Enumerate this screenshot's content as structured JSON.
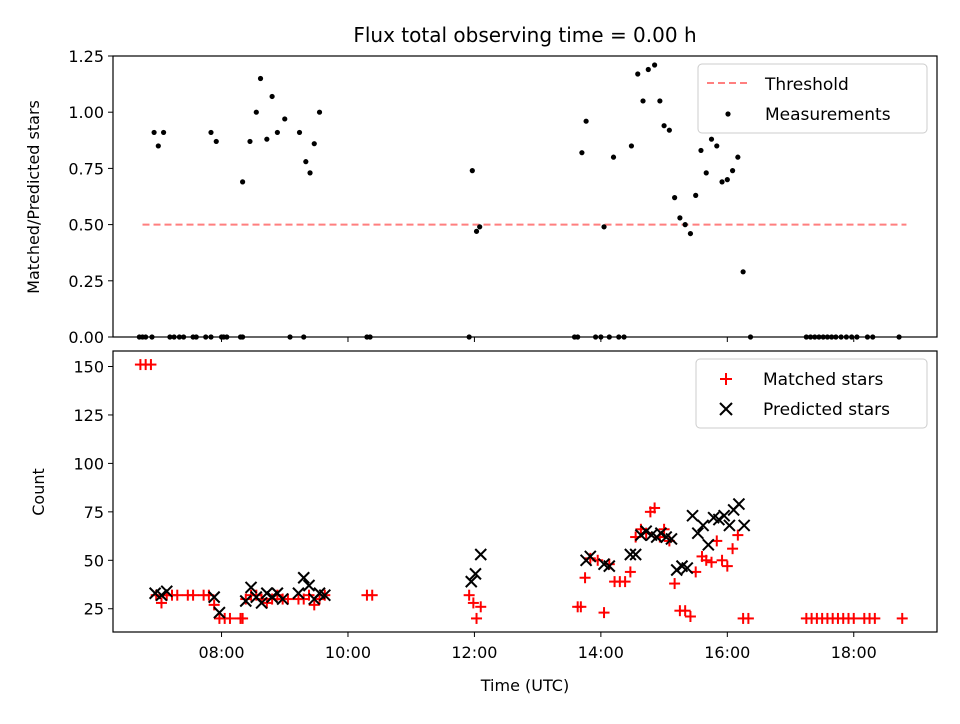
{
  "figure": {
    "title": "Flux total observing time = 0.00 h",
    "xlabel": "Time (UTC)"
  },
  "chart_data": [
    {
      "type": "scatter",
      "title": "Flux total observing time = 0.00 h",
      "ylabel": "Matched/Predicted stars",
      "xlim": [
        "06:17",
        "19:19"
      ],
      "ylim": [
        0,
        1.25
      ],
      "x_ticks": [
        "08:00",
        "10:00",
        "12:00",
        "14:00",
        "16:00",
        "18:00"
      ],
      "y_ticks": [
        "0.00",
        "0.25",
        "0.50",
        "0.75",
        "1.00",
        "1.25"
      ],
      "legend": {
        "placement": "top-right",
        "entries": [
          "Threshold",
          "Measurements"
        ]
      },
      "threshold": {
        "name": "Threshold",
        "value": 0.5,
        "x_range": [
          "06:45",
          "18:50"
        ],
        "color": "#ff7f7f",
        "style": "dashed"
      },
      "series": [
        {
          "name": "Measurements",
          "color": "#000000",
          "marker": "dot",
          "points": [
            [
              "06:42",
              0
            ],
            [
              "06:45",
              0
            ],
            [
              "06:48",
              0
            ],
            [
              "06:54",
              0
            ],
            [
              "06:56",
              0.91
            ],
            [
              "07:00",
              0.85
            ],
            [
              "07:05",
              0.91
            ],
            [
              "07:11",
              0
            ],
            [
              "07:15",
              0
            ],
            [
              "07:20",
              0
            ],
            [
              "07:24",
              0
            ],
            [
              "07:33",
              0
            ],
            [
              "07:36",
              0
            ],
            [
              "07:45",
              0
            ],
            [
              "07:50",
              0
            ],
            [
              "07:50",
              0.91
            ],
            [
              "07:55",
              0.87
            ],
            [
              "08:00",
              0
            ],
            [
              "08:02",
              0
            ],
            [
              "08:05",
              0
            ],
            [
              "08:18",
              0
            ],
            [
              "08:20",
              0
            ],
            [
              "08:20",
              0.69
            ],
            [
              "08:27",
              0.87
            ],
            [
              "08:33",
              1.0
            ],
            [
              "08:37",
              1.15
            ],
            [
              "08:43",
              0.88
            ],
            [
              "08:48",
              1.07
            ],
            [
              "08:53",
              0.91
            ],
            [
              "09:00",
              0.97
            ],
            [
              "09:05",
              0
            ],
            [
              "09:18",
              0
            ],
            [
              "09:14",
              0.91
            ],
            [
              "09:20",
              0.78
            ],
            [
              "09:24",
              0.73
            ],
            [
              "09:28",
              0.86
            ],
            [
              "09:33",
              1.0
            ],
            [
              "10:18",
              0
            ],
            [
              "10:21",
              0
            ],
            [
              "11:55",
              0
            ],
            [
              "11:58",
              0.74
            ],
            [
              "12:02",
              0.47
            ],
            [
              "12:05",
              0.49
            ],
            [
              "13:35",
              0
            ],
            [
              "13:38",
              0
            ],
            [
              "13:42",
              0.82
            ],
            [
              "13:46",
              0.96
            ],
            [
              "13:55",
              0
            ],
            [
              "14:00",
              0
            ],
            [
              "14:03",
              0.49
            ],
            [
              "14:08",
              0
            ],
            [
              "14:12",
              0.8
            ],
            [
              "14:17",
              0
            ],
            [
              "14:22",
              0
            ],
            [
              "14:29",
              0.85
            ],
            [
              "14:35",
              1.17
            ],
            [
              "14:40",
              1.05
            ],
            [
              "14:45",
              1.19
            ],
            [
              "14:51",
              1.21
            ],
            [
              "14:56",
              1.05
            ],
            [
              "15:00",
              0.94
            ],
            [
              "15:05",
              0.92
            ],
            [
              "15:10",
              0.62
            ],
            [
              "15:15",
              0.53
            ],
            [
              "15:20",
              0.5
            ],
            [
              "15:25",
              0.46
            ],
            [
              "15:30",
              0.63
            ],
            [
              "15:35",
              0.83
            ],
            [
              "15:40",
              0.73
            ],
            [
              "15:45",
              0.88
            ],
            [
              "15:50",
              0.85
            ],
            [
              "15:55",
              0.69
            ],
            [
              "16:00",
              0.7
            ],
            [
              "16:05",
              0.74
            ],
            [
              "16:10",
              0.8
            ],
            [
              "16:15",
              0.29
            ],
            [
              "16:22",
              0
            ],
            [
              "17:15",
              0
            ],
            [
              "17:19",
              0
            ],
            [
              "17:23",
              0
            ],
            [
              "17:27",
              0
            ],
            [
              "17:31",
              0
            ],
            [
              "17:35",
              0
            ],
            [
              "17:39",
              0
            ],
            [
              "17:43",
              0
            ],
            [
              "17:48",
              0
            ],
            [
              "17:53",
              0
            ],
            [
              "17:58",
              0
            ],
            [
              "18:03",
              0
            ],
            [
              "18:13",
              0
            ],
            [
              "18:18",
              0
            ],
            [
              "18:43",
              0
            ]
          ]
        }
      ]
    },
    {
      "type": "scatter",
      "ylabel": "Count",
      "xlabel": "Time (UTC)",
      "xlim": [
        "06:17",
        "19:19"
      ],
      "ylim": [
        13,
        158
      ],
      "x_ticks": [
        "08:00",
        "10:00",
        "12:00",
        "14:00",
        "16:00",
        "18:00"
      ],
      "y_ticks": [
        "25",
        "50",
        "75",
        "100",
        "125",
        "150"
      ],
      "legend": {
        "placement": "top-right",
        "entries": [
          "Matched stars",
          "Predicted stars"
        ]
      },
      "series": [
        {
          "name": "Matched stars",
          "color": "#ff0000",
          "marker": "plus",
          "points": [
            [
              "06:43",
              151
            ],
            [
              "06:48",
              151
            ],
            [
              "06:53",
              151
            ],
            [
              "06:58",
              32
            ],
            [
              "07:03",
              28
            ],
            [
              "07:08",
              32
            ],
            [
              "07:13",
              32
            ],
            [
              "07:18",
              32
            ],
            [
              "07:28",
              32
            ],
            [
              "07:33",
              32
            ],
            [
              "07:43",
              32
            ],
            [
              "07:48",
              32
            ],
            [
              "07:53",
              27
            ],
            [
              "07:58",
              20
            ],
            [
              "08:03",
              20
            ],
            [
              "08:08",
              20
            ],
            [
              "08:18",
              20
            ],
            [
              "08:20",
              20
            ],
            [
              "08:23",
              30
            ],
            [
              "08:28",
              32
            ],
            [
              "08:33",
              32
            ],
            [
              "08:38",
              30
            ],
            [
              "08:43",
              28
            ],
            [
              "08:48",
              30
            ],
            [
              "08:53",
              32
            ],
            [
              "08:58",
              30
            ],
            [
              "09:03",
              30
            ],
            [
              "09:13",
              30
            ],
            [
              "09:18",
              30
            ],
            [
              "09:23",
              32
            ],
            [
              "09:28",
              27
            ],
            [
              "09:33",
              30
            ],
            [
              "09:38",
              32
            ],
            [
              "10:18",
              32
            ],
            [
              "10:23",
              32
            ],
            [
              "11:55",
              32
            ],
            [
              "11:59",
              28
            ],
            [
              "12:02",
              20
            ],
            [
              "12:06",
              26
            ],
            [
              "13:38",
              26
            ],
            [
              "13:41",
              26
            ],
            [
              "13:45",
              41
            ],
            [
              "13:50",
              51
            ],
            [
              "13:57",
              50
            ],
            [
              "14:03",
              23
            ],
            [
              "14:08",
              48
            ],
            [
              "14:13",
              39
            ],
            [
              "14:18",
              39
            ],
            [
              "14:23",
              39
            ],
            [
              "14:28",
              44
            ],
            [
              "14:33",
              62
            ],
            [
              "14:38",
              66
            ],
            [
              "14:43",
              64
            ],
            [
              "14:47",
              75
            ],
            [
              "14:51",
              77
            ],
            [
              "14:56",
              62
            ],
            [
              "15:00",
              66
            ],
            [
              "15:05",
              60
            ],
            [
              "15:10",
              38
            ],
            [
              "15:15",
              24
            ],
            [
              "15:20",
              24
            ],
            [
              "15:25",
              21
            ],
            [
              "15:30",
              44
            ],
            [
              "15:36",
              52
            ],
            [
              "15:40",
              50
            ],
            [
              "15:45",
              49
            ],
            [
              "15:50",
              60
            ],
            [
              "15:55",
              50
            ],
            [
              "16:00",
              47
            ],
            [
              "16:05",
              56
            ],
            [
              "16:10",
              63
            ],
            [
              "16:15",
              20
            ],
            [
              "16:20",
              20
            ],
            [
              "17:15",
              20
            ],
            [
              "17:20",
              20
            ],
            [
              "17:25",
              20
            ],
            [
              "17:30",
              20
            ],
            [
              "17:35",
              20
            ],
            [
              "17:40",
              20
            ],
            [
              "17:45",
              20
            ],
            [
              "17:50",
              20
            ],
            [
              "17:55",
              20
            ],
            [
              "18:00",
              20
            ],
            [
              "18:10",
              20
            ],
            [
              "18:15",
              20
            ],
            [
              "18:20",
              20
            ],
            [
              "18:46",
              20
            ]
          ]
        },
        {
          "name": "Predicted stars",
          "color": "#000000",
          "marker": "x",
          "points": [
            [
              "06:57",
              33
            ],
            [
              "07:03",
              32
            ],
            [
              "07:08",
              34
            ],
            [
              "07:53",
              31
            ],
            [
              "07:58",
              23
            ],
            [
              "08:23",
              29
            ],
            [
              "08:28",
              36
            ],
            [
              "08:33",
              31
            ],
            [
              "08:38",
              28
            ],
            [
              "08:43",
              33
            ],
            [
              "08:48",
              31
            ],
            [
              "08:53",
              33
            ],
            [
              "08:58",
              30
            ],
            [
              "09:13",
              33
            ],
            [
              "09:18",
              41
            ],
            [
              "09:23",
              37
            ],
            [
              "09:28",
              30
            ],
            [
              "09:33",
              33
            ],
            [
              "09:38",
              32
            ],
            [
              "11:57",
              39
            ],
            [
              "12:01",
              43
            ],
            [
              "12:06",
              53
            ],
            [
              "13:46",
              50
            ],
            [
              "13:50",
              52
            ],
            [
              "14:03",
              48
            ],
            [
              "14:08",
              47
            ],
            [
              "14:28",
              53
            ],
            [
              "14:33",
              53
            ],
            [
              "14:38",
              63
            ],
            [
              "14:43",
              65
            ],
            [
              "14:48",
              63
            ],
            [
              "14:53",
              62
            ],
            [
              "14:57",
              64
            ],
            [
              "15:02",
              62
            ],
            [
              "15:07",
              61
            ],
            [
              "15:12",
              45
            ],
            [
              "15:17",
              47
            ],
            [
              "15:22",
              46
            ],
            [
              "15:27",
              73
            ],
            [
              "15:32",
              64
            ],
            [
              "15:37",
              68
            ],
            [
              "15:42",
              58
            ],
            [
              "15:47",
              72
            ],
            [
              "15:52",
              71
            ],
            [
              "15:57",
              73
            ],
            [
              "16:02",
              68
            ],
            [
              "16:06",
              76
            ],
            [
              "16:11",
              79
            ],
            [
              "16:16",
              68
            ]
          ]
        }
      ]
    }
  ]
}
